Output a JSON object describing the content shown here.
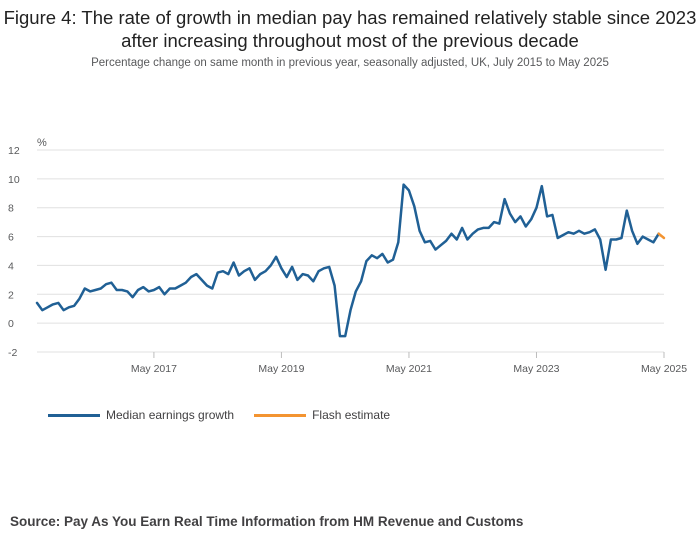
{
  "title": "Figure 4: The rate of growth in median pay has remained relatively stable since 2023 after increasing throughout most of the previous decade",
  "subtitle": "Percentage change on same month in previous year, seasonally adjusted, UK, July 2015 to May 2025",
  "source": "Source: Pay As You Earn Real Time Information from HM Revenue and Customs",
  "colors": {
    "median": "#206095",
    "flash": "#f39431",
    "grid": "#e0e0e0"
  },
  "chart_data": {
    "type": "line",
    "ylabel": "%",
    "ylim": [
      -2,
      12
    ],
    "yticks": [
      -2,
      0,
      2,
      4,
      6,
      8,
      10,
      12
    ],
    "xlim": [
      "2015-07",
      "2025-05"
    ],
    "xticks": [
      {
        "date": "2017-05",
        "label": "May 2017"
      },
      {
        "date": "2019-05",
        "label": "May 2019"
      },
      {
        "date": "2021-05",
        "label": "May 2021"
      },
      {
        "date": "2023-05",
        "label": "May 2023"
      },
      {
        "date": "2025-05",
        "label": "May 2025"
      }
    ],
    "legend_position": "bottom-left",
    "series": [
      {
        "name": "Median earnings growth",
        "color": "#206095",
        "start": "2015-07",
        "values": [
          1.4,
          0.9,
          1.1,
          1.3,
          1.4,
          0.9,
          1.1,
          1.2,
          1.7,
          2.4,
          2.2,
          2.3,
          2.4,
          2.7,
          2.8,
          2.3,
          2.3,
          2.2,
          1.8,
          2.3,
          2.5,
          2.2,
          2.3,
          2.5,
          2.0,
          2.4,
          2.4,
          2.6,
          2.8,
          3.2,
          3.4,
          3.0,
          2.6,
          2.4,
          3.5,
          3.6,
          3.4,
          4.2,
          3.3,
          3.6,
          3.8,
          3.0,
          3.4,
          3.6,
          4.0,
          4.6,
          3.8,
          3.2,
          3.9,
          3.0,
          3.4,
          3.3,
          2.9,
          3.6,
          3.8,
          3.9,
          2.6,
          -0.9,
          -0.9,
          0.9,
          2.2,
          2.9,
          4.3,
          4.7,
          4.5,
          4.8,
          4.2,
          4.4,
          5.6,
          9.6,
          9.2,
          8.1,
          6.4,
          5.6,
          5.7,
          5.1,
          5.4,
          5.7,
          6.2,
          5.8,
          6.6,
          5.8,
          6.2,
          6.5,
          6.6,
          6.6,
          7.0,
          6.9,
          8.6,
          7.6,
          7.0,
          7.4,
          6.7,
          7.2,
          8.0,
          9.5,
          7.4,
          7.5,
          5.9,
          6.1,
          6.3,
          6.2,
          6.4,
          6.2,
          6.3,
          6.5,
          5.8,
          3.7,
          5.8,
          5.8,
          5.9,
          7.8,
          6.4,
          5.5,
          6.0,
          5.8,
          5.6,
          6.2
        ]
      },
      {
        "name": "Flash estimate",
        "color": "#f39431",
        "start": "2025-04",
        "values": [
          6.2,
          5.9
        ]
      }
    ]
  }
}
